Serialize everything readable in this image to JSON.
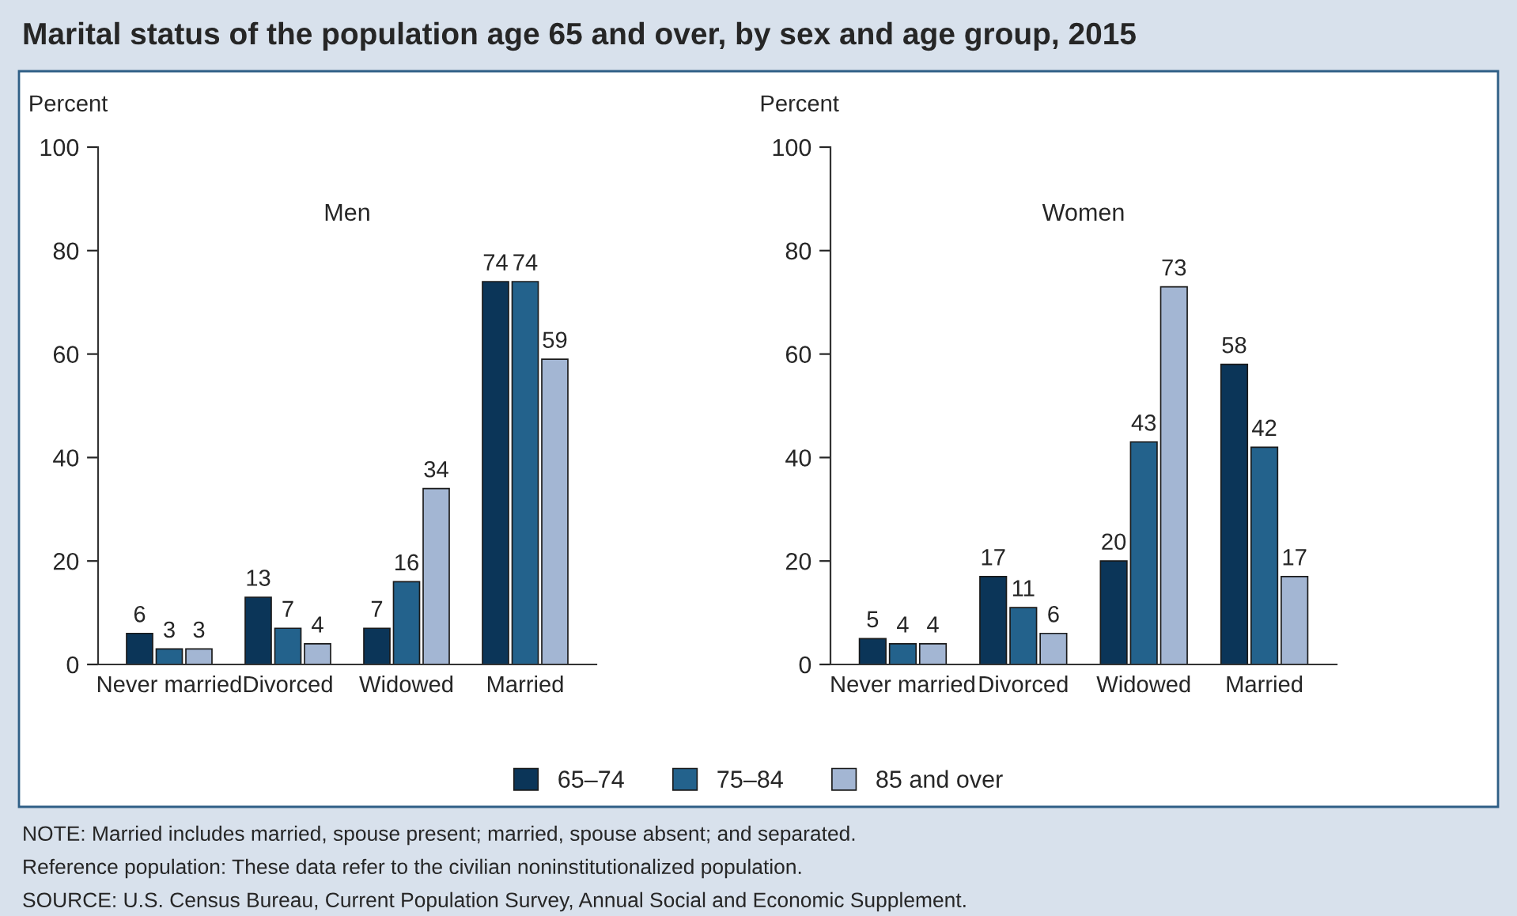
{
  "chart_data": [
    {
      "type": "bar",
      "title": "Marital status of the population age 65 and over, by sex and age group, 2015",
      "subtitle": "Men",
      "ylabel": "Percent",
      "categories": [
        "Never married",
        "Divorced",
        "Widowed",
        "Married"
      ],
      "series": [
        {
          "name": "65–74",
          "color": "#0b3558",
          "values": [
            6,
            13,
            7,
            74
          ]
        },
        {
          "name": "75–84",
          "color": "#23628c",
          "values": [
            3,
            7,
            16,
            74
          ]
        },
        {
          "name": "85 and over",
          "color": "#a3b6d3",
          "values": [
            3,
            4,
            34,
            59
          ]
        }
      ],
      "ylim": [
        0,
        100
      ],
      "yticks": [
        0,
        20,
        40,
        60,
        80,
        100
      ],
      "data_labels": true,
      "grid": false,
      "legend": "bottom",
      "annotations": [
        "NOTE: Married includes married, spouse present; married, spouse absent; and separated.",
        "Reference population: These data refer to the civilian noninstitutionalized population.",
        "SOURCE: U.S. Census Bureau, Current Population Survey, Annual Social and Economic Supplement."
      ]
    },
    {
      "type": "bar",
      "subtitle": "Women",
      "ylabel": "Percent",
      "categories": [
        "Never married",
        "Divorced",
        "Widowed",
        "Married"
      ],
      "series": [
        {
          "color": "#0b3558",
          "values": [
            5,
            17,
            20,
            58
          ]
        },
        {
          "color": "#23628c",
          "values": [
            4,
            11,
            43,
            42
          ]
        },
        {
          "color": "#a3b6d3",
          "values": [
            4,
            6,
            73,
            17
          ]
        }
      ],
      "ylim": [
        0,
        100
      ],
      "yticks": [
        0,
        20,
        40,
        60,
        80,
        100
      ],
      "data_labels": true,
      "grid": false
    }
  ]
}
